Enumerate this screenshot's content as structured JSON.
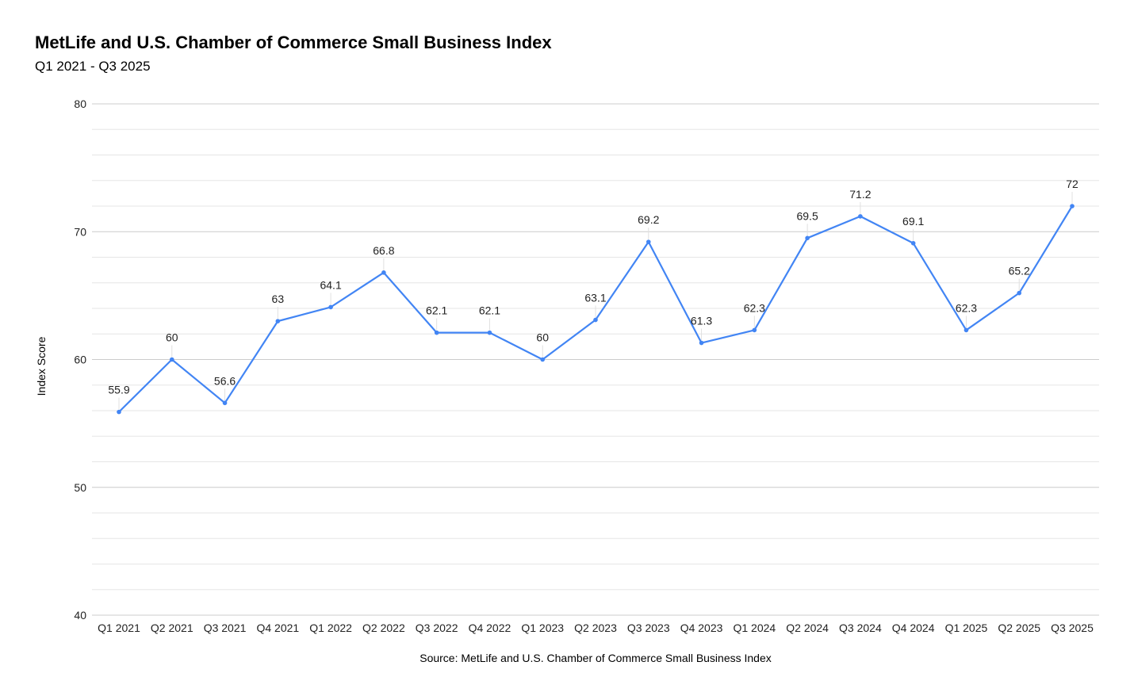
{
  "chart_data": {
    "type": "line",
    "title": "MetLife and U.S. Chamber of Commerce Small Business Index",
    "subtitle": "Q1 2021 - Q3 2025",
    "xlabel": "Source: MetLife and U.S. Chamber of Commerce Small Business Index",
    "ylabel": "Index Score",
    "ylim": [
      40,
      80
    ],
    "yticks": [
      40,
      50,
      60,
      70,
      80
    ],
    "grid": true,
    "legend": "none",
    "categories": [
      "Q1 2021",
      "Q2 2021",
      "Q3 2021",
      "Q4 2021",
      "Q1 2022",
      "Q2 2022",
      "Q3 2022",
      "Q4 2022",
      "Q1 2023",
      "Q2 2023",
      "Q3 2023",
      "Q4 2023",
      "Q1 2024",
      "Q2 2024",
      "Q3 2024",
      "Q4 2024",
      "Q1 2025",
      "Q2 2025",
      "Q3 2025"
    ],
    "series": [
      {
        "name": "Index Score",
        "color": "#4285f4",
        "values": [
          55.9,
          60,
          56.6,
          63,
          64.1,
          66.8,
          62.1,
          62.1,
          60,
          63.1,
          69.2,
          61.3,
          62.3,
          69.5,
          71.2,
          69.1,
          62.3,
          65.2,
          72
        ]
      }
    ]
  }
}
